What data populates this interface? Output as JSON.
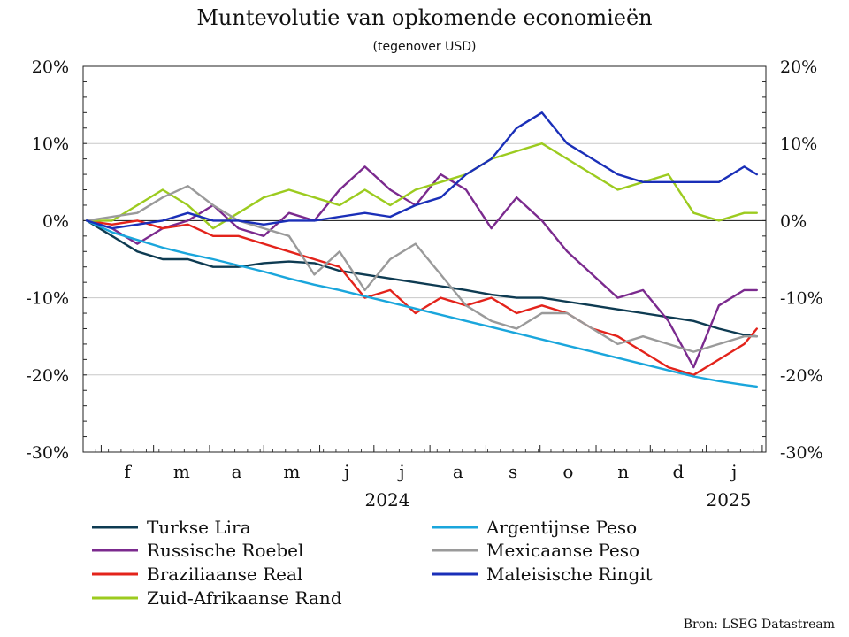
{
  "chart_data": {
    "type": "line",
    "title": "Muntevolutie van opkomende economieën",
    "subtitle": "(tegenover USD)",
    "ylabel": "",
    "xlabel": "",
    "ylim": [
      -30,
      20
    ],
    "y_ticks": [
      20,
      10,
      0,
      -10,
      -20,
      -30
    ],
    "y_tick_labels": [
      "20%",
      "10%",
      "0%",
      "-10%",
      "-20%",
      "-30%"
    ],
    "month_labels": [
      "f",
      "m",
      "a",
      "m",
      "j",
      "j",
      "a",
      "s",
      "o",
      "n",
      "d",
      "j"
    ],
    "year_labels": [
      "2024",
      "2025"
    ],
    "grid": "horizontal",
    "legend_position": "bottom",
    "source": "Bron: LSEG Datastream",
    "x": [
      "2024-01-24",
      "2024-02-07",
      "2024-02-21",
      "2024-03-06",
      "2024-03-20",
      "2024-04-03",
      "2024-04-17",
      "2024-05-01",
      "2024-05-15",
      "2024-05-29",
      "2024-06-12",
      "2024-06-26",
      "2024-07-10",
      "2024-07-24",
      "2024-08-07",
      "2024-08-21",
      "2024-09-04",
      "2024-09-18",
      "2024-10-02",
      "2024-10-16",
      "2024-10-30",
      "2024-11-13",
      "2024-11-27",
      "2024-12-11",
      "2024-12-25",
      "2025-01-08",
      "2025-01-22",
      "2025-01-29"
    ],
    "series": [
      {
        "name": "Turkse Lira",
        "color": "#0e3b52",
        "values": [
          0,
          -2,
          -4,
          -5,
          -5,
          -6,
          -6,
          -5.5,
          -5.3,
          -5.5,
          -6.5,
          -7,
          -7.5,
          -8,
          -8.5,
          -9,
          -9.6,
          -10,
          -10,
          -10.5,
          -11,
          -11.5,
          -12,
          -12.5,
          -13,
          -14,
          -14.8,
          -15
        ]
      },
      {
        "name": "Russische Roebel",
        "color": "#7b2a8e",
        "values": [
          0,
          -1,
          -3,
          -1,
          0,
          2,
          -1,
          -2,
          1,
          0,
          4,
          7,
          4,
          2,
          6,
          4,
          -1,
          3,
          0,
          -4,
          -7,
          -10,
          -9,
          -13,
          -19,
          -11,
          -9,
          -9
        ]
      },
      {
        "name": "Braziliaanse Real",
        "color": "#e3231b",
        "values": [
          0,
          -0.5,
          0,
          -1,
          -0.5,
          -2,
          -2,
          -3,
          -4,
          -5,
          -6,
          -10,
          -9,
          -12,
          -10,
          -11,
          -10,
          -12,
          -11,
          -12,
          -14,
          -15,
          -17,
          -19,
          -20,
          -18,
          -16,
          -14
        ]
      },
      {
        "name": "Zuid-Afrikaanse Rand",
        "color": "#9ccb1f",
        "values": [
          0,
          0,
          2,
          4,
          2,
          -1,
          1,
          3,
          4,
          3,
          2,
          4,
          2,
          4,
          5,
          6,
          8,
          9,
          10,
          8,
          6,
          4,
          5,
          6,
          1,
          0,
          1,
          1
        ]
      },
      {
        "name": "Argentijnse Peso",
        "color": "#1aa6dc",
        "values": [
          0,
          -1.5,
          -2.5,
          -3.5,
          -4.3,
          -5,
          -5.8,
          -6.6,
          -7.5,
          -8.3,
          -9,
          -9.8,
          -10.6,
          -11.4,
          -12.2,
          -13,
          -13.8,
          -14.6,
          -15.4,
          -16.2,
          -17,
          -17.8,
          -18.6,
          -19.4,
          -20.2,
          -20.8,
          -21.3,
          -21.5
        ]
      },
      {
        "name": "Mexicaanse Peso",
        "color": "#9a9a9a",
        "values": [
          0,
          0.5,
          1,
          3,
          4.5,
          2,
          0,
          -1,
          -2,
          -7,
          -4,
          -9,
          -5,
          -3,
          -7,
          -11,
          -13,
          -14,
          -12,
          -12,
          -14,
          -16,
          -15,
          -16,
          -17,
          -16,
          -15,
          -15
        ]
      },
      {
        "name": "Maleisische Ringit",
        "color": "#1a2fb8",
        "values": [
          0,
          -1,
          -0.5,
          0,
          1,
          0,
          0,
          -0.5,
          0,
          0,
          0.5,
          1,
          0.5,
          2,
          3,
          6,
          8,
          12,
          14,
          10,
          8,
          6,
          5,
          5,
          5,
          5,
          7,
          6
        ]
      }
    ]
  },
  "legend": {
    "col1": [
      {
        "label": "Turkse Lira",
        "color": "#0e3b52"
      },
      {
        "label": "Russische Roebel",
        "color": "#7b2a8e"
      },
      {
        "label": "Braziliaanse Real",
        "color": "#e3231b"
      },
      {
        "label": "Zuid-Afrikaanse Rand",
        "color": "#9ccb1f"
      }
    ],
    "col2": [
      {
        "label": "Argentijnse Peso",
        "color": "#1aa6dc"
      },
      {
        "label": "Mexicaanse Peso",
        "color": "#9a9a9a"
      },
      {
        "label": "Maleisische Ringit",
        "color": "#1a2fb8"
      }
    ]
  }
}
